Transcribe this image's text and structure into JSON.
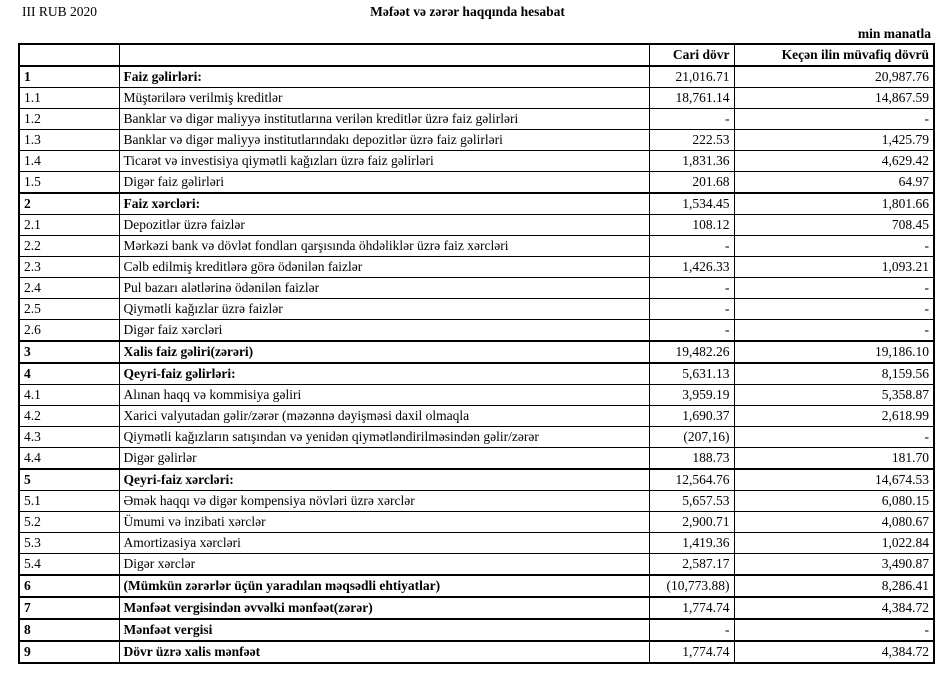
{
  "page": {
    "period": "III RUB 2020",
    "title": "Məfəət və zərər haqqında hesabat",
    "unit_note": "min manatla"
  },
  "table": {
    "headers": {
      "number": "",
      "label": "",
      "current": "Cari dövr",
      "previous": "Keçən ilin müvafiq dövrü"
    },
    "rows": [
      {
        "no": "1",
        "label": "Faiz gəlirləri:",
        "current": "21,016.71",
        "previous": "20,987.76",
        "section": true
      },
      {
        "no": "1.1",
        "label": "Müştərilərə verilmiş kreditlər",
        "current": "18,761.14",
        "previous": "14,867.59",
        "section": false
      },
      {
        "no": "1.2",
        "label": "Banklar və digər maliyyə institutlarına verilən kreditlər üzrə faiz gəlirləri",
        "current": "-",
        "previous": "-",
        "section": false
      },
      {
        "no": "1.3",
        "label": "Banklar və digər maliyyə institutlarındakı depozitlər üzrə faiz gəlirləri",
        "current": "222.53",
        "previous": "1,425.79",
        "section": false
      },
      {
        "no": "1.4",
        "label": "Ticarət və investisiya qiymətli kağızları üzrə faiz gəlirləri",
        "current": "1,831.36",
        "previous": "4,629.42",
        "section": false
      },
      {
        "no": "1.5",
        "label": "Digər faiz gəlirləri",
        "current": "201.68",
        "previous": "64.97",
        "section": false
      },
      {
        "no": "2",
        "label": "Faiz xərcləri:",
        "current": "1,534.45",
        "previous": "1,801.66",
        "section": true
      },
      {
        "no": "2.1",
        "label": "Depozitlər üzrə faizlər",
        "current": "108.12",
        "previous": "708.45",
        "section": false
      },
      {
        "no": "2.2",
        "label": "Mərkəzi bank və dövlət fondları qarşısında öhdəliklər üzrə faiz xərcləri",
        "current": "-",
        "previous": "-",
        "section": false
      },
      {
        "no": "2.3",
        "label": "Cəlb edilmiş kreditlərə görə ödənilən faizlər",
        "current": "1,426.33",
        "previous": "1,093.21",
        "section": false
      },
      {
        "no": "2.4",
        "label": "Pul bazarı alətlərinə ödənilən faizlər",
        "current": "-",
        "previous": "-",
        "section": false
      },
      {
        "no": "2.5",
        "label": "Qiymətli kağızlar üzrə faizlər",
        "current": "-",
        "previous": "-",
        "section": false
      },
      {
        "no": "2.6",
        "label": "Digər faiz xərcləri",
        "current": "-",
        "previous": "-",
        "section": false
      },
      {
        "no": "3",
        "label": "Xalis faiz gəliri(zərəri)",
        "current": "19,482.26",
        "previous": "19,186.10",
        "section": true
      },
      {
        "no": "4",
        "label": "Qeyri-faiz gəlirləri:",
        "current": "5,631.13",
        "previous": "8,159.56",
        "section": true
      },
      {
        "no": "4.1",
        "label": "Alınan haqq və kommisiya gəliri",
        "current": "3,959.19",
        "previous": "5,358.87",
        "section": false
      },
      {
        "no": "4.2",
        "label": "Xarici valyutadan gəlir/zərər (məzənnə dəyişməsi daxil olmaqla",
        "current": "1,690.37",
        "previous": "2,618.99",
        "section": false
      },
      {
        "no": "4.3",
        "label": "Qiymətli kağızların satışından və yenidən qiymətləndirilməsindən gəlir/zərər",
        "current": "(207,16)",
        "previous": "-",
        "section": false
      },
      {
        "no": "4.4",
        "label": "Digər gəlirlər",
        "current": "188.73",
        "previous": "181.70",
        "section": false
      },
      {
        "no": "5",
        "label": "Qeyri-faiz xərcləri:",
        "current": "12,564.76",
        "previous": "14,674.53",
        "section": true
      },
      {
        "no": "5.1",
        "label": "Əmək haqqı və digər kompensiya növləri üzrə xərclər",
        "current": "5,657.53",
        "previous": "6,080.15",
        "section": false
      },
      {
        "no": "5.2",
        "label": "Ümumi və inzibati xərclər",
        "current": "2,900.71",
        "previous": "4,080.67",
        "section": false
      },
      {
        "no": "5.3",
        "label": "Amortizasiya xərcləri",
        "current": "1,419.36",
        "previous": "1,022.84",
        "section": false
      },
      {
        "no": "5.4",
        "label": "Digər xərclər",
        "current": "2,587.17",
        "previous": "3,490.87",
        "section": false
      },
      {
        "no": "6",
        "label": "(Mümkün zərərlər üçün yaradılan məqsədli ehtiyatlar)",
        "current": "(10,773.88)",
        "previous": "8,286.41",
        "section": true
      },
      {
        "no": "7",
        "label": "Mənfəət vergisindən əvvəlki mənfəət(zərər)",
        "current": "1,774.74",
        "previous": "4,384.72",
        "section": true
      },
      {
        "no": "8",
        "label": "Mənfəət vergisi",
        "current": "-",
        "previous": "-",
        "section": true
      },
      {
        "no": "9",
        "label": "Dövr üzrə xalis mənfəət",
        "current": "1,774.74",
        "previous": "4,384.72",
        "section": true
      }
    ]
  }
}
